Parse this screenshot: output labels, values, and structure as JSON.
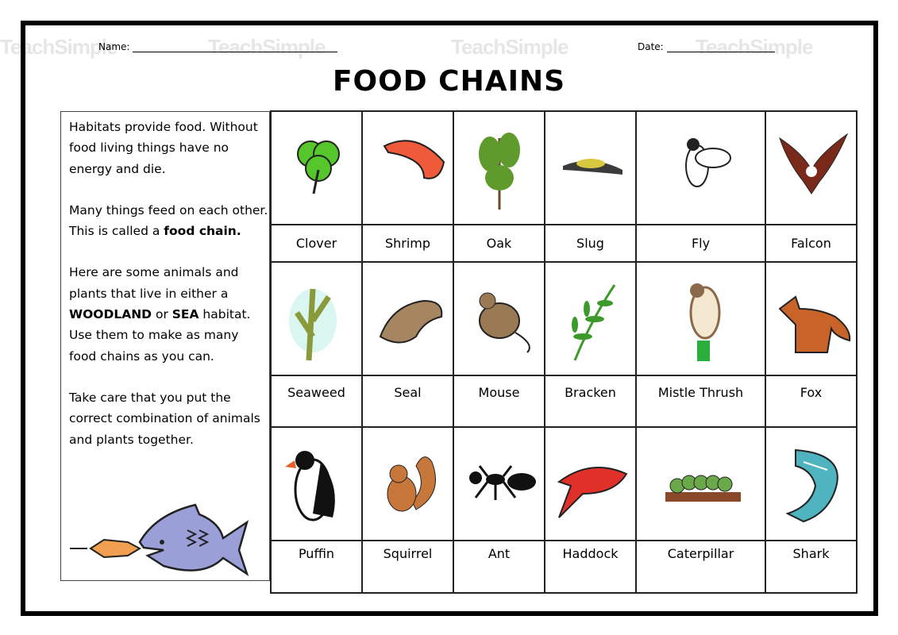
{
  "header": {
    "name_label": "Name:",
    "date_label": "Date:",
    "title": "FOOD CHAINS"
  },
  "watermark": "TeachSimple",
  "info": {
    "p1": "Habitats provide food. Without food living things have no energy and die.",
    "p2_a": "Many things feed on each other. This is called a ",
    "p2_bold": "food chain.",
    "p3_a": "Here are some animals and plants that live in either a ",
    "p3_b1": "WOODLAND",
    "p3_or": " or ",
    "p3_b2": "SEA",
    "p3_c": " habitat. Use them to make as many food chains as you can.",
    "p4": "Take care that you put the correct combination of animals and plants together."
  },
  "rows": [
    [
      {
        "label": "Clover",
        "icon": "clover-icon",
        "color": "#55c62c"
      },
      {
        "label": "Shrimp",
        "icon": "shrimp-icon",
        "color": "#ef5a3a"
      },
      {
        "label": "Oak",
        "icon": "oak-icon",
        "color": "#5f9a2c"
      },
      {
        "label": "Slug",
        "icon": "slug-icon",
        "color": "#3b3b3b"
      },
      {
        "label": "Fly",
        "icon": "fly-icon",
        "color": "#222222"
      },
      {
        "label": "Falcon",
        "icon": "falcon-icon",
        "color": "#7a2a1a"
      }
    ],
    [
      {
        "label": "Seaweed",
        "icon": "seaweed-icon",
        "color": "#8a9a3a"
      },
      {
        "label": "Seal",
        "icon": "seal-icon",
        "color": "#a58660"
      },
      {
        "label": "Mouse",
        "icon": "mouse-icon",
        "color": "#9a7a55"
      },
      {
        "label": "Bracken",
        "icon": "bracken-icon",
        "color": "#3c9a2a"
      },
      {
        "label": "Mistle Thrush",
        "icon": "thrush-icon",
        "color": "#8a6a4a"
      },
      {
        "label": "Fox",
        "icon": "fox-icon",
        "color": "#c8642a"
      }
    ],
    [
      {
        "label": "Puffin",
        "icon": "puffin-icon",
        "color": "#111111"
      },
      {
        "label": "Squirrel",
        "icon": "squirrel-icon",
        "color": "#c8773a"
      },
      {
        "label": "Ant",
        "icon": "ant-icon",
        "color": "#111111"
      },
      {
        "label": "Haddock",
        "icon": "haddock-icon",
        "color": "#e0302a"
      },
      {
        "label": "Caterpillar",
        "icon": "caterpillar-icon",
        "color": "#6aa84a"
      },
      {
        "label": "Shark",
        "icon": "shark-icon",
        "color": "#4fb3c0"
      }
    ]
  ]
}
